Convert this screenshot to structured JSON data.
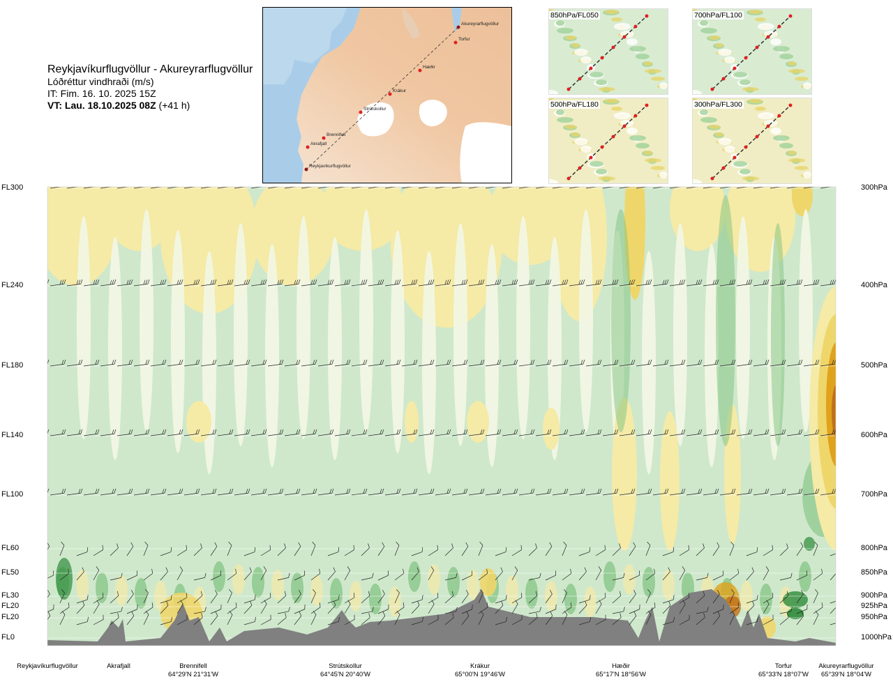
{
  "header": {
    "title": "Reykjavíkurflugvöllur - Akureyrarflugvöllur",
    "subtitle": "Lóðréttur vindhraði (m/s)",
    "issue_time": "IT: Fim. 16. 10. 2025 15Z",
    "valid_time": "VT: Lau. 18.10.2025 08Z",
    "lead_time": "(+41 h)"
  },
  "map": {
    "places": [
      "Akureyrarflugvöllur",
      "Torfur",
      "Hæðir",
      "Krákur",
      "Strútskollur",
      "Brennifell",
      "Akrafjall",
      "Reykjavíkurflugvöllur"
    ]
  },
  "thumbnails": [
    {
      "label": "850hPa/FL050"
    },
    {
      "label": "700hPa/FL100"
    },
    {
      "label": "500hPa/FL180"
    },
    {
      "label": "300hPa/FL300"
    }
  ],
  "chart_data": {
    "type": "heatmap",
    "title": "Lóðréttur vindhraði (m/s)",
    "y_levels": [
      {
        "fl": "FL300",
        "hpa": "300hPa"
      },
      {
        "fl": "FL240",
        "hpa": "400hPa"
      },
      {
        "fl": "FL180",
        "hpa": "500hPa"
      },
      {
        "fl": "FL140",
        "hpa": "600hPa"
      },
      {
        "fl": "FL100",
        "hpa": "700hPa"
      },
      {
        "fl": "FL60",
        "hpa": "800hPa"
      },
      {
        "fl": "FL50",
        "hpa": "850hPa"
      },
      {
        "fl": "FL30",
        "hpa": "900hPa"
      },
      {
        "fl": "FL20",
        "hpa": "925hPa"
      },
      {
        "fl": "FL20",
        "hpa": "950hPa"
      },
      {
        "fl": "FL0",
        "hpa": "1000hPa"
      }
    ],
    "waypoints": [
      {
        "name": "Reykjavíkurflugvöllur",
        "coord": ""
      },
      {
        "name": "Akrafjall",
        "coord": ""
      },
      {
        "name": "Brennifell",
        "coord": "64°29'N 21°31'W"
      },
      {
        "name": "Strútskollur",
        "coord": "64°45'N 20°40'W"
      },
      {
        "name": "Krákur",
        "coord": "65°00'N 19°46'W"
      },
      {
        "name": "Hæðir",
        "coord": "65°17'N 18°56'W"
      },
      {
        "name": "Torfur",
        "coord": "65°33'N 18°07'W"
      },
      {
        "name": "Akureyrarflugvöllur",
        "coord": "65°39'N 18°04'W"
      }
    ],
    "colors": {
      "strong_down": "#2e8b3a",
      "down": "#7fc27f",
      "weak_down": "#cfe8cc",
      "neutral": "#f3f7e6",
      "weak_up": "#f5eaa6",
      "up": "#eed66a",
      "strong_up": "#e0a21c",
      "very_strong_up": "#c0701a",
      "terrain": "#808080"
    }
  }
}
